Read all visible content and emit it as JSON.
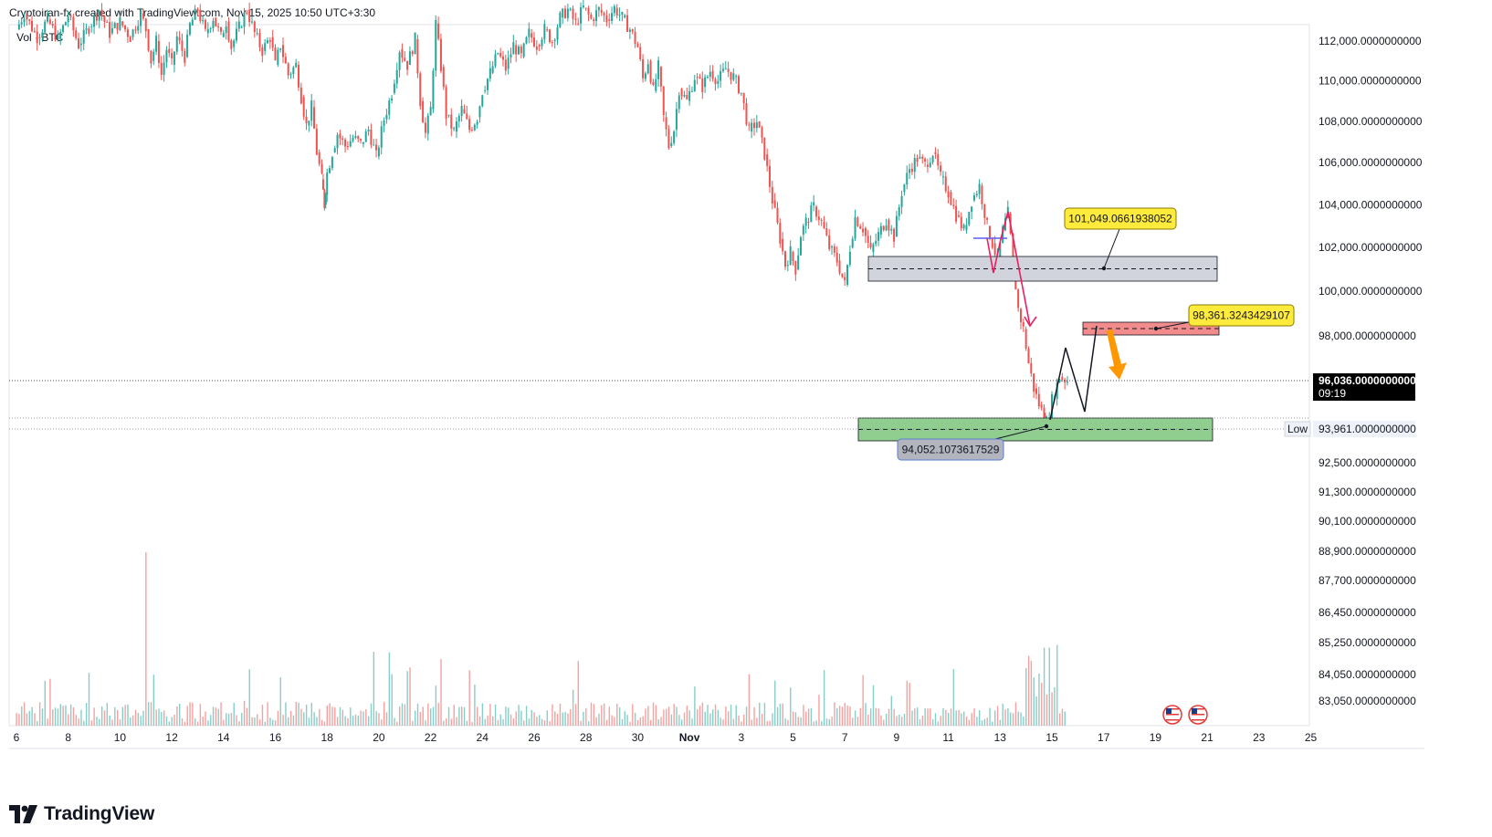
{
  "header": {
    "attribution": "Cryptoiran-fx created with TradingView.com, Nov 15, 2025 10:50 UTC+3:30",
    "symbol": "Vol · BTC"
  },
  "branding": {
    "logo_text": "TradingView"
  },
  "colors": {
    "bull": "#26a69a",
    "bear": "#ef5350",
    "callout_yellow": "#ffeb3b",
    "callout_gray": "#b2b5be",
    "zone_gray": "#d1d4dc",
    "zone_red": "#f28b8b",
    "zone_green": "#8fce8f",
    "arrow_orange": "#ff9800",
    "price_box": "#000000"
  },
  "chart_data": {
    "type": "candlestick",
    "series": [
      {
        "name": "BTC",
        "style": "candles"
      },
      {
        "name": "Vol",
        "style": "volume-bars"
      }
    ],
    "y_axis": {
      "scale": "log",
      "tick_labels": [
        "112,000.0000000000",
        "110,000.0000000000",
        "108,000.0000000000",
        "106,000.0000000000",
        "104,000.0000000000",
        "102,000.0000000000",
        "100,000.0000000000",
        "98,000.0000000000",
        "92,500.0000000000",
        "91,300.0000000000",
        "90,100.0000000000",
        "88,900.0000000000",
        "87,700.0000000000",
        "86,450.0000000000",
        "85,250.0000000000",
        "84,050.0000000000",
        "83,050.0000000000"
      ],
      "ticks": [
        112000,
        110000,
        108000,
        106000,
        104000,
        102000,
        100000,
        98000,
        92500,
        91300,
        90100,
        88900,
        87700,
        86450,
        85250,
        84050,
        83050
      ]
    },
    "x_axis": {
      "tick_labels": [
        "6",
        "8",
        "10",
        "12",
        "14",
        "16",
        "18",
        "20",
        "22",
        "24",
        "26",
        "28",
        "30",
        "Nov",
        "3",
        "5",
        "7",
        "9",
        "11",
        "13",
        "15",
        "17",
        "19",
        "21",
        "23",
        "25"
      ]
    },
    "current_price": {
      "label": "96,036.0000000000",
      "countdown": "09:19",
      "value": 96036
    },
    "low_marker": {
      "tag": "Low",
      "label": "93,961.0000000000",
      "value": 93961
    },
    "price_path": [
      [
        6.0,
        112600
      ],
      [
        6.3,
        113400
      ],
      [
        6.8,
        112200
      ],
      [
        7.2,
        113100
      ],
      [
        7.6,
        112100
      ],
      [
        8.0,
        113300
      ],
      [
        8.4,
        111800
      ],
      [
        8.8,
        112700
      ],
      [
        9.2,
        113600
      ],
      [
        9.6,
        112400
      ],
      [
        10.0,
        113000
      ],
      [
        10.4,
        112200
      ],
      [
        10.8,
        113400
      ],
      [
        11.0,
        112600
      ],
      [
        11.2,
        111000
      ],
      [
        11.4,
        112000
      ],
      [
        11.6,
        110300
      ],
      [
        11.8,
        111600
      ],
      [
        12.0,
        110800
      ],
      [
        12.2,
        112200
      ],
      [
        12.5,
        111200
      ],
      [
        12.7,
        112800
      ],
      [
        13.0,
        113600
      ],
      [
        13.3,
        112400
      ],
      [
        13.6,
        113200
      ],
      [
        13.9,
        112200
      ],
      [
        14.1,
        113000
      ],
      [
        14.3,
        111700
      ],
      [
        14.6,
        112700
      ],
      [
        14.9,
        113600
      ],
      [
        15.2,
        112400
      ],
      [
        15.5,
        111500
      ],
      [
        15.8,
        112200
      ],
      [
        16.0,
        110800
      ],
      [
        16.2,
        111800
      ],
      [
        16.5,
        110300
      ],
      [
        16.8,
        110800
      ],
      [
        17.0,
        109200
      ],
      [
        17.2,
        107800
      ],
      [
        17.4,
        108700
      ],
      [
        17.6,
        106500
      ],
      [
        17.8,
        105200
      ],
      [
        17.9,
        104000
      ],
      [
        18.0,
        105500
      ],
      [
        18.2,
        106500
      ],
      [
        18.4,
        107400
      ],
      [
        18.7,
        106800
      ],
      [
        19.0,
        107200
      ],
      [
        19.3,
        106900
      ],
      [
        19.6,
        107600
      ],
      [
        19.9,
        106300
      ],
      [
        20.2,
        108100
      ],
      [
        20.5,
        109400
      ],
      [
        20.8,
        111600
      ],
      [
        21.1,
        110800
      ],
      [
        21.4,
        112100
      ],
      [
        21.6,
        109000
      ],
      [
        21.8,
        107400
      ],
      [
        22.0,
        108600
      ],
      [
        22.2,
        112900
      ],
      [
        22.4,
        110700
      ],
      [
        22.6,
        108300
      ],
      [
        22.9,
        107500
      ],
      [
        23.2,
        108600
      ],
      [
        23.5,
        107600
      ],
      [
        23.8,
        108200
      ],
      [
        24.0,
        109500
      ],
      [
        24.3,
        110400
      ],
      [
        24.6,
        111400
      ],
      [
        24.9,
        110600
      ],
      [
        25.2,
        111800
      ],
      [
        25.5,
        111200
      ],
      [
        25.8,
        112400
      ],
      [
        26.1,
        111800
      ],
      [
        26.4,
        112600
      ],
      [
        26.7,
        112000
      ],
      [
        27.0,
        113200
      ],
      [
        27.3,
        113600
      ],
      [
        27.6,
        112900
      ],
      [
        27.9,
        113700
      ],
      [
        28.2,
        113100
      ],
      [
        28.5,
        113600
      ],
      [
        28.8,
        113100
      ],
      [
        29.1,
        113700
      ],
      [
        29.4,
        113200
      ],
      [
        29.7,
        112600
      ],
      [
        30.0,
        111700
      ],
      [
        30.2,
        110100
      ],
      [
        30.4,
        111000
      ],
      [
        30.6,
        109500
      ],
      [
        30.8,
        110700
      ],
      [
        31.0,
        108200
      ],
      [
        31.2,
        106800
      ],
      [
        31.4,
        107600
      ],
      [
        31.6,
        109600
      ],
      [
        31.9,
        109000
      ],
      [
        32.2,
        110200
      ],
      [
        32.5,
        109700
      ],
      [
        32.8,
        110500
      ],
      [
        33.1,
        110000
      ],
      [
        33.4,
        110600
      ],
      [
        33.7,
        110200
      ],
      [
        34.0,
        109400
      ],
      [
        34.3,
        107500
      ],
      [
        34.6,
        108000
      ],
      [
        34.9,
        106400
      ],
      [
        35.2,
        104200
      ],
      [
        35.5,
        102400
      ],
      [
        35.7,
        101200
      ],
      [
        35.9,
        101800
      ],
      [
        36.1,
        101000
      ],
      [
        36.3,
        102600
      ],
      [
        36.5,
        103200
      ],
      [
        36.8,
        103900
      ],
      [
        37.1,
        103200
      ],
      [
        37.4,
        102000
      ],
      [
        37.7,
        101400
      ],
      [
        38.0,
        100300
      ],
      [
        38.2,
        102000
      ],
      [
        38.4,
        103400
      ],
      [
        38.7,
        102900
      ],
      [
        39.0,
        101800
      ],
      [
        39.3,
        102600
      ],
      [
        39.6,
        103300
      ],
      [
        39.9,
        102500
      ],
      [
        40.2,
        104600
      ],
      [
        40.5,
        105700
      ],
      [
        40.8,
        106200
      ],
      [
        41.1,
        105900
      ],
      [
        41.4,
        106500
      ],
      [
        41.7,
        105300
      ],
      [
        42.0,
        104600
      ],
      [
        42.3,
        103500
      ],
      [
        42.6,
        102800
      ],
      [
        42.9,
        104200
      ],
      [
        43.2,
        104900
      ],
      [
        43.5,
        103000
      ],
      [
        43.7,
        102200
      ],
      [
        43.9,
        101400
      ],
      [
        44.1,
        102800
      ],
      [
        44.3,
        103600
      ],
      [
        44.5,
        101300
      ],
      [
        44.7,
        99200
      ],
      [
        44.9,
        98300
      ],
      [
        45.1,
        96800
      ],
      [
        45.3,
        95700
      ],
      [
        45.5,
        95000
      ],
      [
        45.7,
        94500
      ],
      [
        45.8,
        94052
      ],
      [
        46.0,
        95200
      ],
      [
        46.3,
        96200
      ],
      [
        46.6,
        96036
      ]
    ],
    "candle_note": "x values are days since Oct 6 for layout only",
    "volume_bars": [],
    "zones": [
      {
        "name": "resistance-gray",
        "bottom": 100650,
        "top": 101650,
        "level": 101049.0661938052,
        "label": "101,049.0661938052"
      },
      {
        "name": "resistance-red",
        "bottom": 98150,
        "top": 98600,
        "level": 98361.3243429107,
        "label": "98,361.3243429107"
      },
      {
        "name": "support-green",
        "bottom": 93400,
        "top": 94450,
        "level": 94052.1073617529,
        "label": "94,052.1073617529"
      }
    ]
  }
}
